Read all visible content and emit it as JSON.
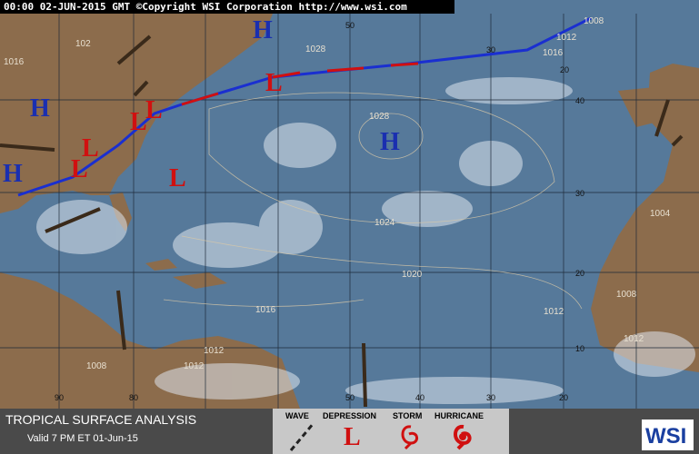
{
  "header": {
    "text": "00:00 02-JUN-2015 GMT ©Copyright WSI Corporation http://www.wsi.com"
  },
  "pressure_centers": [
    "H",
    "H",
    "H",
    "H",
    "L",
    "L",
    "L",
    "L",
    "L",
    "L"
  ],
  "isobar_labels": [
    "1028",
    "1016",
    "1028",
    "1024",
    "1020",
    "1016",
    "1012",
    "1012",
    "1008",
    "1012",
    "1008",
    "1012",
    "1004",
    "1016",
    "1012",
    "1008",
    "102"
  ],
  "latitude_labels": [
    40,
    30,
    20,
    10
  ],
  "longitude_labels_top": [
    50,
    30,
    20
  ],
  "longitude_labels_bottom": [
    90,
    80,
    50,
    40,
    30,
    20
  ],
  "footer": {
    "title": "TROPICAL SURFACE ANALYSIS",
    "valid": "Valid 7 PM ET 01-Jun-15",
    "legend": [
      "WAVE",
      "DEPRESSION",
      "STORM",
      "HURRICANE"
    ],
    "depression_symbol": "L",
    "logo": "WSI"
  }
}
